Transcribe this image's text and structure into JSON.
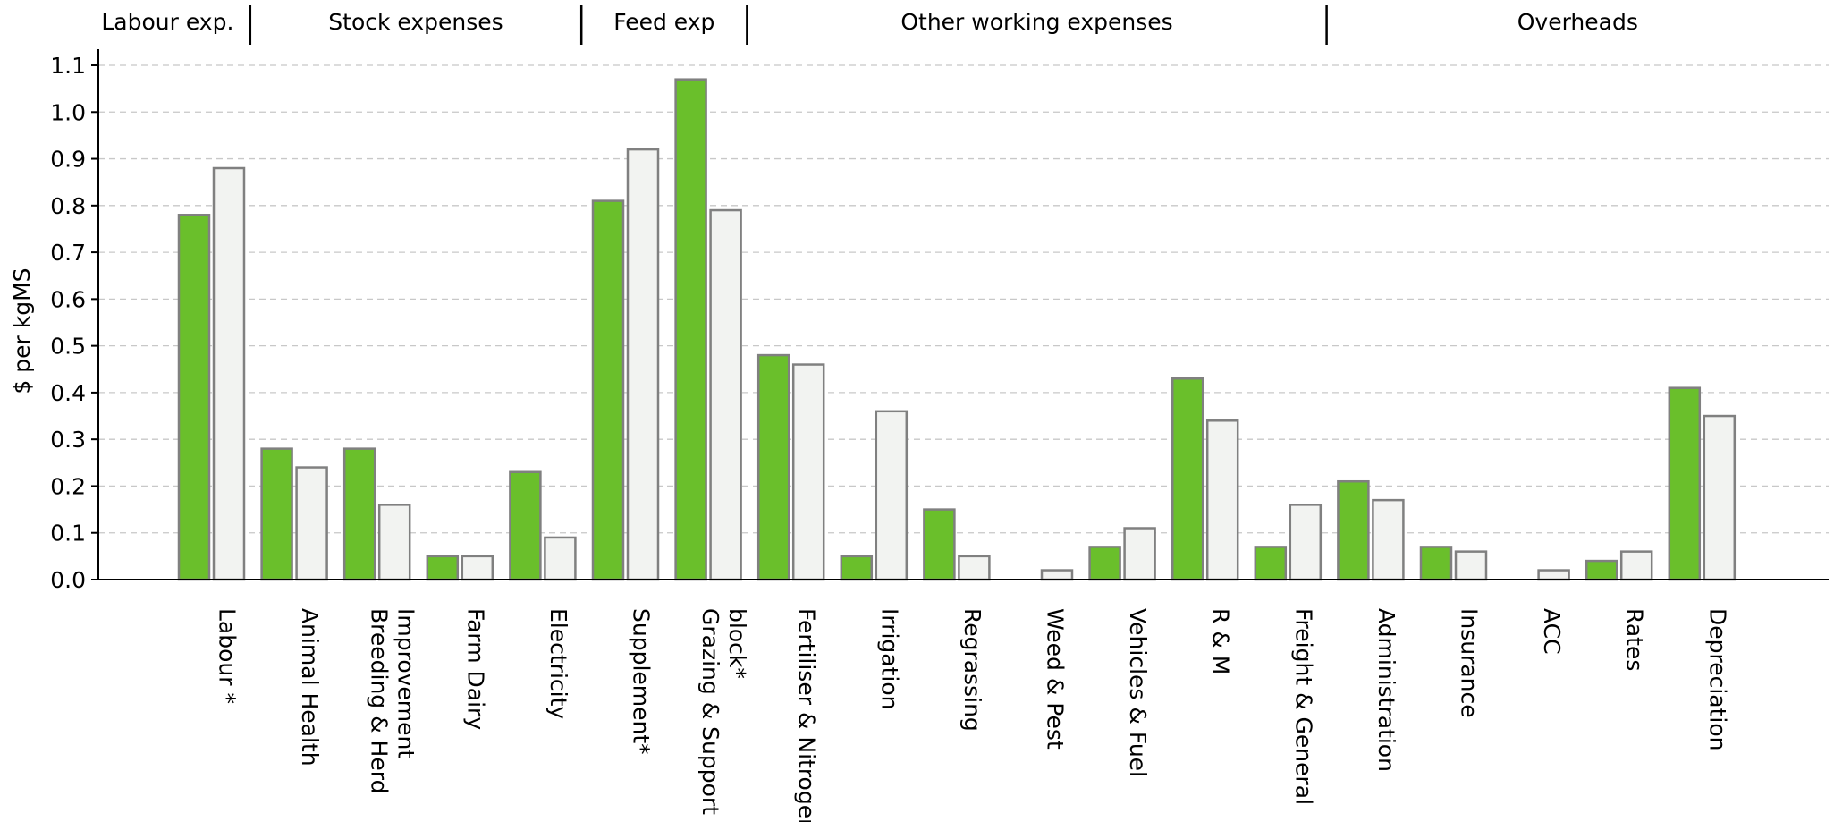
{
  "chart_data": {
    "type": "bar",
    "ylabel": "$ per kgMS",
    "ylim": [
      0,
      1.1
    ],
    "yticks": [
      "0.0",
      "0.1",
      "0.2",
      "0.3",
      "0.4",
      "0.5",
      "0.6",
      "0.7",
      "0.8",
      "0.9",
      "1.0",
      "1.1"
    ],
    "grid": true,
    "categories": [
      "Labour *",
      "Animal Health",
      "Breeding & Herd Improvement",
      "Farm Dairy",
      "Electricity",
      "Supplement*",
      "Grazing & Support block*",
      "Fertiliser & Nitrogen",
      "Irrigation",
      "Regrassing",
      "Weed & Pest",
      "Vehicles & Fuel",
      "R & M",
      "Freight & General",
      "Administration",
      "Insurance",
      "ACC",
      "Rates",
      "Depreciation"
    ],
    "category_label_lines": [
      [
        "Labour *"
      ],
      [
        "Animal Health"
      ],
      [
        "Breeding & Herd",
        "Improvement"
      ],
      [
        "Farm Dairy"
      ],
      [
        "Electricity"
      ],
      [
        "Supplement*"
      ],
      [
        "Grazing & Support",
        "block*"
      ],
      [
        "Fertiliser & Nitrogen"
      ],
      [
        "Irrigation"
      ],
      [
        "Regrassing"
      ],
      [
        "Weed & Pest"
      ],
      [
        "Vehicles & Fuel"
      ],
      [
        "R & M"
      ],
      [
        "Freight & General"
      ],
      [
        "Administration"
      ],
      [
        "Insurance"
      ],
      [
        "ACC"
      ],
      [
        "Rates"
      ],
      [
        "Depreciation"
      ]
    ],
    "series": [
      {
        "color": "#6abf2b",
        "values": [
          0.78,
          0.28,
          0.28,
          0.05,
          0.23,
          0.81,
          1.07,
          0.48,
          0.05,
          0.15,
          0.0,
          0.07,
          0.43,
          0.07,
          0.21,
          0.07,
          0.0,
          0.04,
          0.41
        ]
      },
      {
        "color": "#f2f3f1",
        "values": [
          0.88,
          0.24,
          0.16,
          0.05,
          0.09,
          0.92,
          0.79,
          0.46,
          0.36,
          0.05,
          0.02,
          0.11,
          0.34,
          0.16,
          0.17,
          0.06,
          0.02,
          0.06,
          0.35
        ]
      }
    ],
    "bar_stroke": "#808080",
    "groups": [
      {
        "label": "Labour exp.",
        "start": 0,
        "end": 0
      },
      {
        "label": "Stock expenses",
        "start": 1,
        "end": 4
      },
      {
        "label": "Feed exp",
        "start": 5,
        "end": 6
      },
      {
        "label": "Other working expenses",
        "start": 7,
        "end": 13
      },
      {
        "label": "Overheads",
        "start": 14,
        "end": 18
      }
    ]
  }
}
